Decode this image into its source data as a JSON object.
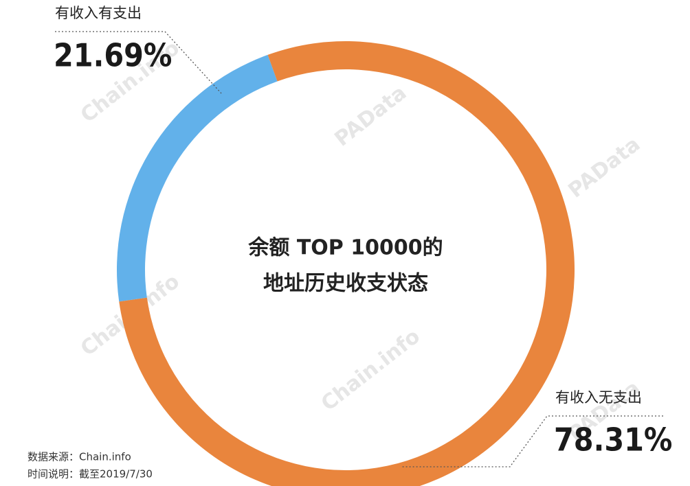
{
  "chart_data": {
    "type": "pie",
    "donut": true,
    "title": [
      "余额 TOP 10000的",
      "地址历史收支状态"
    ],
    "categories": [
      "有收入有支出",
      "有收入无支出"
    ],
    "values": [
      21.69,
      78.31
    ],
    "value_labels": [
      "21.69%",
      "78.31%"
    ],
    "colors": [
      "#62b1ea",
      "#e9853d"
    ],
    "notes": [
      "数据来源：Chain.info",
      "时间说明：截至2019/7/30"
    ],
    "watermarks": [
      "Chain.info",
      "PAData"
    ]
  }
}
